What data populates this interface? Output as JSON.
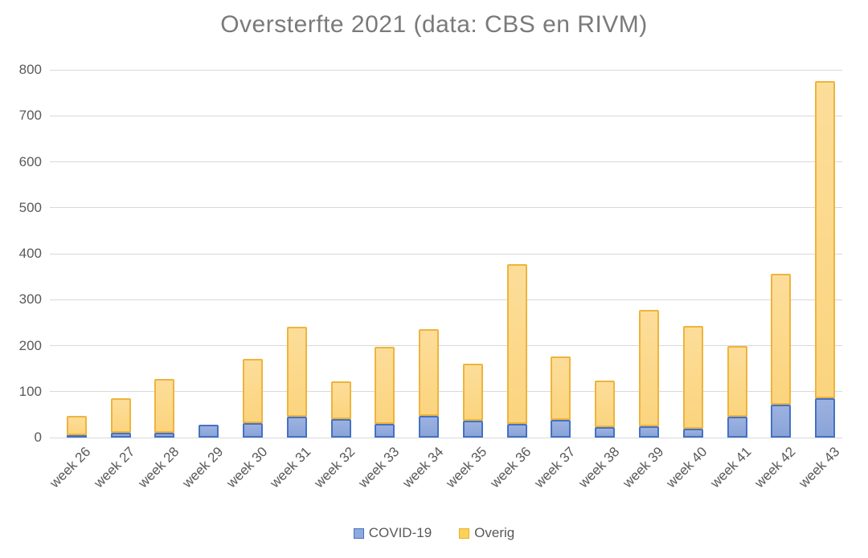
{
  "chart_data": {
    "type": "bar",
    "stacked": true,
    "title": "Oversterfte 2021 (data: CBS en RIVM)",
    "categories": [
      "week 26",
      "week 27",
      "week 28",
      "week 29",
      "week 30",
      "week 31",
      "week 32",
      "week 33",
      "week 34",
      "week 35",
      "week 36",
      "week 37",
      "week 38",
      "week 39",
      "week 40",
      "week 41",
      "week 42",
      "week 43"
    ],
    "series": [
      {
        "name": "COVID-19",
        "color": "#8EA9DB",
        "border_color": "#4472C4",
        "values": [
          5,
          10,
          11,
          28,
          32,
          45,
          40,
          29,
          47,
          37,
          30,
          38,
          22,
          25,
          20,
          45,
          72,
          85
        ]
      },
      {
        "name": "Overig",
        "color": "#FBD88A",
        "border_color": "#EFB43C",
        "values": [
          42,
          76,
          116,
          0,
          140,
          196,
          83,
          168,
          188,
          123,
          348,
          139,
          102,
          253,
          222,
          155,
          285,
          690
        ]
      }
    ],
    "totals": [
      47,
      86,
      127,
      28,
      172,
      241,
      123,
      197,
      235,
      160,
      378,
      177,
      124,
      278,
      242,
      200,
      357,
      775
    ],
    "ylim": [
      0,
      800
    ],
    "yticks": [
      0,
      100,
      200,
      300,
      400,
      500,
      600,
      700,
      800
    ],
    "xlabel": "",
    "ylabel": "",
    "grid": true,
    "legend_position": "bottom",
    "text_color": "#595959",
    "title_color": "#7A7A7A",
    "gridline_color": "#D9D9D9"
  }
}
